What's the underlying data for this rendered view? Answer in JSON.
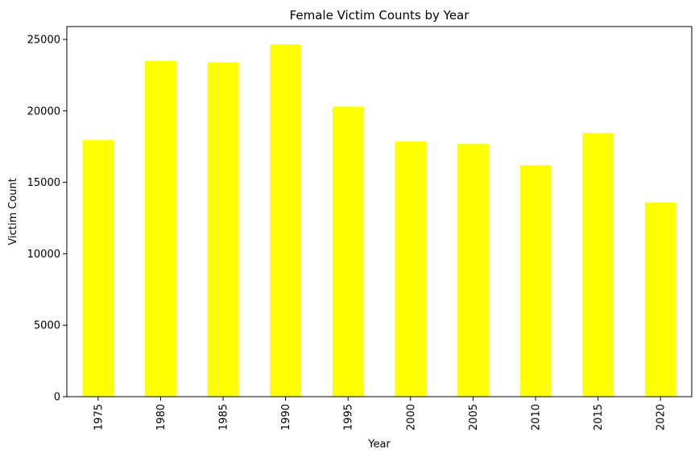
{
  "chart_data": {
    "type": "bar",
    "title": "Female Victim Counts by Year",
    "xlabel": "Year",
    "ylabel": "Victim Count",
    "categories": [
      "1975",
      "1980",
      "1985",
      "1990",
      "1995",
      "2000",
      "2005",
      "2010",
      "2015",
      "2020"
    ],
    "values": [
      17950,
      23500,
      23400,
      24650,
      20300,
      17850,
      17700,
      16200,
      18450,
      13600
    ],
    "ylim": [
      0,
      25900
    ],
    "yticks": [
      0,
      5000,
      10000,
      15000,
      20000,
      25000
    ],
    "bar_color": "#ffff00",
    "grid": false,
    "legend": "none"
  }
}
